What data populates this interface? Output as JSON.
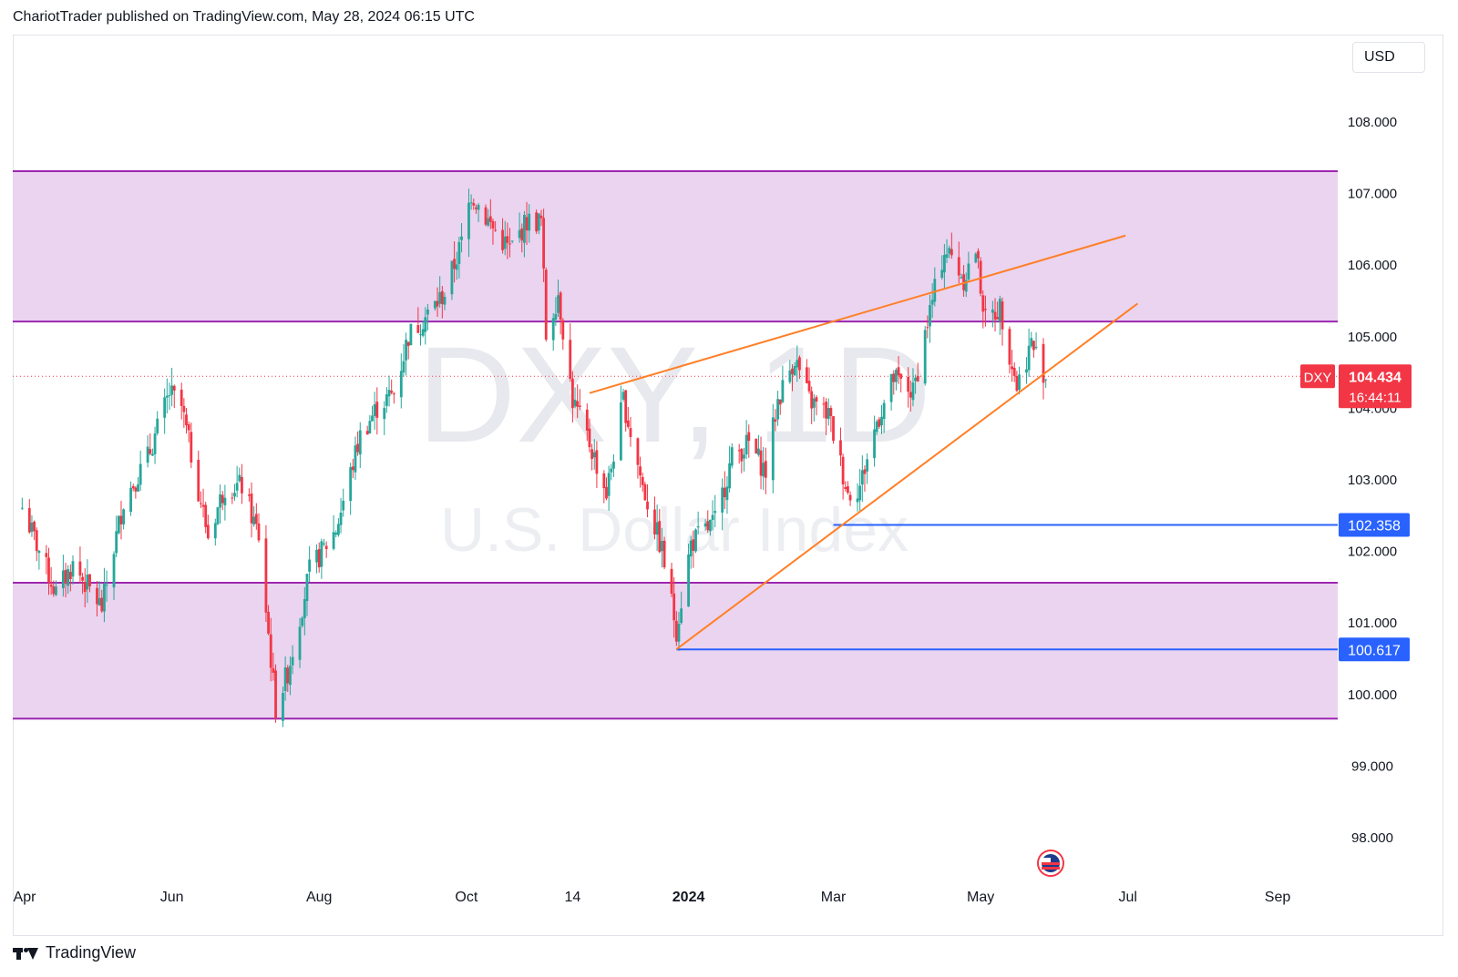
{
  "header": {
    "text": "ChariotTrader published on TradingView.com, May 28, 2024 06:15 UTC"
  },
  "footer": {
    "brand": "TradingView"
  },
  "currency_button": {
    "label": "USD"
  },
  "watermark": {
    "symbol": "DXY, 1D",
    "name": "U.S. Dollar Index"
  },
  "price_labels": {
    "symbol_tag": "DXY",
    "last_price": "104.434",
    "countdown": "16:44:11",
    "support_high": "102.358",
    "support_low": "100.617"
  },
  "colors": {
    "up": "#26a69a",
    "down": "#f23645",
    "zone_fill": "#ead4ef",
    "zone_line": "#9c27b0",
    "trendline": "#ff7f27",
    "level": "#2962ff",
    "price_tag": "#f23645"
  },
  "chart_data": {
    "type": "candlestick",
    "title": "",
    "xlabel": "",
    "ylabel": "",
    "x_ticks": [
      "Apr",
      "Jun",
      "Aug",
      "Oct",
      "14",
      "2024",
      "Mar",
      "May",
      "Jul",
      "Sep"
    ],
    "y_ticks": [
      "108.000",
      "107.000",
      "106.000",
      "105.000",
      "104.000",
      "103.000",
      "102.000",
      "101.000",
      "100.000",
      "99.000",
      "98.000"
    ],
    "ylim": [
      97.3,
      108.9
    ],
    "x_range": [
      "2023-03-31",
      "2024-10-01"
    ],
    "grid": false,
    "last_price": 104.434,
    "horizontal_lines": [
      {
        "label": "102.358",
        "y": 102.358,
        "x_from": "2024-03-01"
      },
      {
        "label": "100.617",
        "y": 100.617,
        "x_from": "2023-12-27"
      }
    ],
    "zones": [
      {
        "top": 107.3,
        "bottom": 105.2
      },
      {
        "top": 101.55,
        "bottom": 99.65
      }
    ],
    "trendlines": [
      {
        "from": [
          "2023-11-21",
          104.2
        ],
        "to": [
          "2024-06-30",
          106.4
        ]
      },
      {
        "from": [
          "2023-12-27",
          100.62
        ],
        "to": [
          "2024-07-05",
          105.45
        ]
      }
    ],
    "path": [
      [
        "2023-03-31",
        102.6
      ],
      [
        "2023-04-14",
        101.4
      ],
      [
        "2023-04-21",
        101.8
      ],
      [
        "2023-05-03",
        101.2
      ],
      [
        "2023-05-12",
        102.7
      ],
      [
        "2023-05-22",
        103.3
      ],
      [
        "2023-05-31",
        104.2
      ],
      [
        "2023-06-05",
        104.0
      ],
      [
        "2023-06-16",
        102.2
      ],
      [
        "2023-06-23",
        102.9
      ],
      [
        "2023-06-30",
        102.9
      ],
      [
        "2023-07-07",
        102.2
      ],
      [
        "2023-07-14",
        99.8
      ],
      [
        "2023-07-19",
        100.3
      ],
      [
        "2023-07-28",
        101.7
      ],
      [
        "2023-08-08",
        102.3
      ],
      [
        "2023-08-18",
        103.6
      ],
      [
        "2023-08-25",
        104.0
      ],
      [
        "2023-09-01",
        104.2
      ],
      [
        "2023-09-07",
        105.0
      ],
      [
        "2023-09-15",
        105.3
      ],
      [
        "2023-09-22",
        105.6
      ],
      [
        "2023-09-29",
        106.3
      ],
      [
        "2023-10-03",
        107.0
      ],
      [
        "2023-10-12",
        106.5
      ],
      [
        "2023-10-19",
        106.2
      ],
      [
        "2023-10-26",
        106.6
      ],
      [
        "2023-11-01",
        106.6
      ],
      [
        "2023-11-03",
        105.0
      ],
      [
        "2023-11-08",
        105.6
      ],
      [
        "2023-11-14",
        104.1
      ],
      [
        "2023-11-21",
        103.5
      ],
      [
        "2023-11-28",
        102.8
      ],
      [
        "2023-12-05",
        104.1
      ],
      [
        "2023-12-13",
        102.9
      ],
      [
        "2023-12-21",
        102.0
      ],
      [
        "2023-12-27",
        100.9
      ],
      [
        "2024-01-02",
        102.1
      ],
      [
        "2024-01-12",
        102.4
      ],
      [
        "2024-01-19",
        103.3
      ],
      [
        "2024-01-26",
        103.5
      ],
      [
        "2024-02-02",
        103.1
      ],
      [
        "2024-02-07",
        104.1
      ],
      [
        "2024-02-14",
        104.7
      ],
      [
        "2024-02-20",
        104.1
      ],
      [
        "2024-02-28",
        103.9
      ],
      [
        "2024-03-07",
        102.8
      ],
      [
        "2024-03-12",
        102.9
      ],
      [
        "2024-03-19",
        103.8
      ],
      [
        "2024-03-26",
        104.4
      ],
      [
        "2024-04-03",
        104.2
      ],
      [
        "2024-04-09",
        105.2
      ],
      [
        "2024-04-16",
        106.2
      ],
      [
        "2024-04-19",
        106.1
      ],
      [
        "2024-04-24",
        105.8
      ],
      [
        "2024-04-29",
        106.2
      ],
      [
        "2024-05-03",
        105.2
      ],
      [
        "2024-05-09",
        105.4
      ],
      [
        "2024-05-16",
        104.3
      ],
      [
        "2024-05-22",
        104.9
      ],
      [
        "2024-05-28",
        104.434
      ]
    ]
  }
}
